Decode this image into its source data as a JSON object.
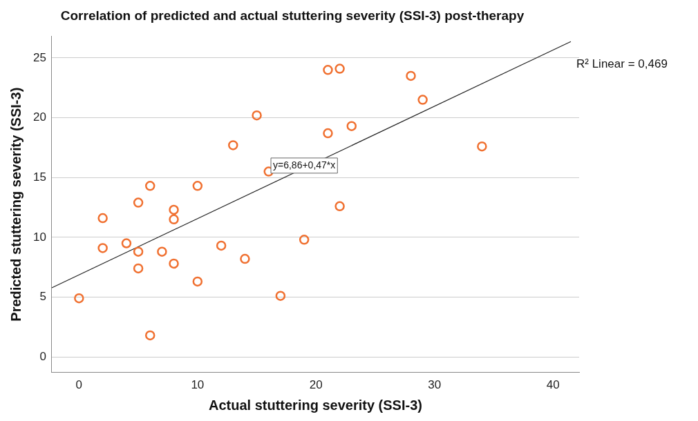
{
  "chart_data": {
    "type": "scatter",
    "title": "Correlation of predicted and actual stuttering severity (SSI-3) post-therapy",
    "xlabel": "Actual stuttering severity (SSI-3)",
    "ylabel": "Predicted stuttering severity (SSI-3)",
    "xlim": [
      -2.3,
      42.2
    ],
    "xticks": [
      0,
      10,
      20,
      30,
      40
    ],
    "ylim": [
      -1.3,
      26.8
    ],
    "yticks": [
      0,
      5,
      10,
      15,
      20,
      25
    ],
    "grid": "y",
    "marker": "circle",
    "legend": false,
    "series": [
      {
        "color": "#f07030",
        "x": [
          0,
          2,
          2,
          4,
          5,
          5,
          5,
          6,
          6,
          7,
          8,
          8,
          8,
          10,
          10,
          12,
          13,
          14,
          15,
          16,
          17,
          19,
          21,
          21,
          22,
          22,
          23,
          28,
          29,
          34
        ],
        "values": [
          4.9,
          11.6,
          9.1,
          9.5,
          12.9,
          8.8,
          7.4,
          14.3,
          1.8,
          8.8,
          12.3,
          11.5,
          7.8,
          14.3,
          6.3,
          9.3,
          17.7,
          8.2,
          20.2,
          15.5,
          5.1,
          9.8,
          24.0,
          18.7,
          24.1,
          12.6,
          19.3,
          23.5,
          21.5,
          17.6
        ]
      },
      {
        "type": "line",
        "color": "#222222",
        "x": [
          -2.3,
          41.5
        ],
        "values": [
          5.78,
          26.37
        ],
        "marker": "none",
        "line_style": "solid"
      }
    ],
    "annotations": [
      {
        "text": "y=6,86+0,47*x",
        "x": 19,
        "y": 16
      },
      "R² Linear = 0,469"
    ]
  }
}
